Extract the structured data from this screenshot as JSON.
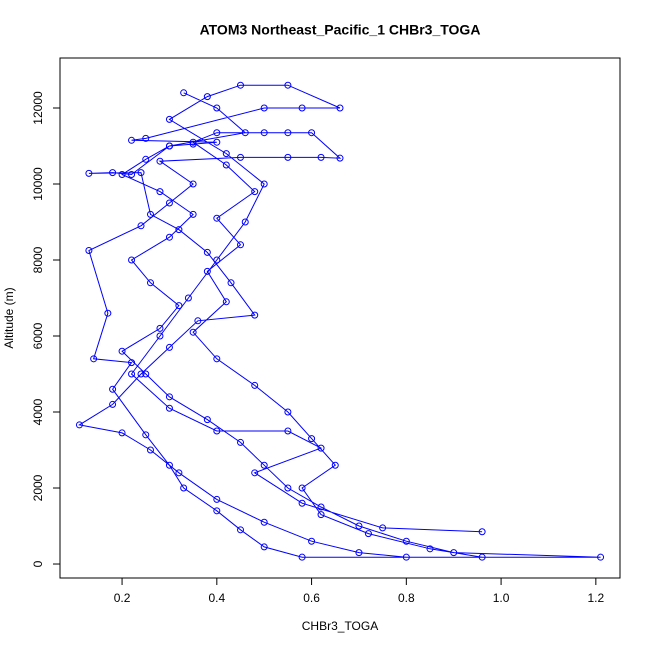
{
  "chart_data": {
    "type": "line",
    "title": "ATOM3 Northeast_Pacific_1 CHBr3_TOGA",
    "x_label": "CHBr3_TOGA",
    "y_label": "Altitude (m)",
    "xlim": [
      0.069,
      1.251
    ],
    "ylim": [
      -368,
      13316
    ],
    "xticks": [
      0.2,
      0.4,
      0.6,
      0.8,
      {
        "value": 1,
        "label": "1.0"
      },
      1.2
    ],
    "yticks": [
      0,
      2000,
      4000,
      6000,
      8000,
      10000,
      12000
    ],
    "x": [
      0.33,
      0.4,
      0.46,
      0.3,
      0.25,
      0.2,
      0.28,
      0.35,
      0.3,
      0.22,
      0.26,
      0.32,
      0.28,
      0.2,
      0.25,
      0.3,
      0.38,
      0.45,
      0.5,
      0.55,
      0.62,
      0.7,
      0.8,
      0.9,
      1.21,
      0.58,
      0.5,
      0.45,
      0.4,
      0.33,
      0.3,
      0.25,
      0.18,
      0.22,
      0.14,
      0.17,
      0.13,
      0.24,
      0.3,
      0.35,
      0.28,
      0.45,
      0.55,
      0.62,
      0.66,
      0.6,
      0.55,
      0.5,
      0.4,
      0.35,
      0.42,
      0.48,
      0.4,
      0.45,
      0.38,
      0.42,
      0.35,
      0.4,
      0.48,
      0.55,
      0.6,
      0.65,
      0.58,
      0.62,
      0.72,
      0.85,
      0.96,
      0.8,
      0.7,
      0.6,
      0.5,
      0.4,
      0.32,
      0.26,
      0.2,
      0.11,
      0.18,
      0.24,
      0.3,
      0.36,
      0.48,
      0.43,
      0.38,
      0.32,
      0.26,
      0.24,
      0.13,
      0.18,
      0.22,
      0.3,
      0.35,
      0.4,
      0.22,
      0.25,
      0.5,
      0.58,
      0.66,
      0.55,
      0.45,
      0.38,
      0.3,
      0.42,
      0.5,
      0.46,
      0.4,
      0.34,
      0.28,
      0.22,
      0.3,
      0.4,
      0.55,
      0.62,
      0.48,
      0.58,
      0.75,
      0.96
    ],
    "series": [
      {
        "name": "CHBr3_TOGA",
        "color": "#0000ff",
        "values": [
          12400,
          12000,
          11350,
          11000,
          10650,
          10250,
          9800,
          9200,
          8600,
          8000,
          7400,
          6800,
          6200,
          5600,
          5000,
          4400,
          3800,
          3200,
          2600,
          2000,
          1500,
          1000,
          600,
          300,
          180,
          180,
          450,
          900,
          1400,
          2000,
          2600,
          3400,
          4600,
          5300,
          5400,
          6600,
          8250,
          8900,
          9500,
          10000,
          10600,
          10700,
          10700,
          10700,
          10680,
          11350,
          11350,
          11350,
          11350,
          11100,
          10500,
          9800,
          9100,
          8400,
          7700,
          6900,
          6100,
          5400,
          4700,
          4000,
          3300,
          2600,
          2000,
          1300,
          800,
          400,
          180,
          180,
          300,
          600,
          1100,
          1700,
          2400,
          3000,
          3450,
          3660,
          4200,
          5000,
          5700,
          6400,
          6550,
          7400,
          8200,
          8800,
          9200,
          10300,
          10280,
          10300,
          10250,
          11000,
          11050,
          11100,
          11150,
          11200,
          12000,
          12000,
          12000,
          12600,
          12600,
          12300,
          11700,
          10800,
          10000,
          9000,
          8000,
          7000,
          6000,
          5000,
          4100,
          3500,
          3500,
          3050,
          2400,
          1600,
          950,
          850
        ]
      }
    ]
  }
}
